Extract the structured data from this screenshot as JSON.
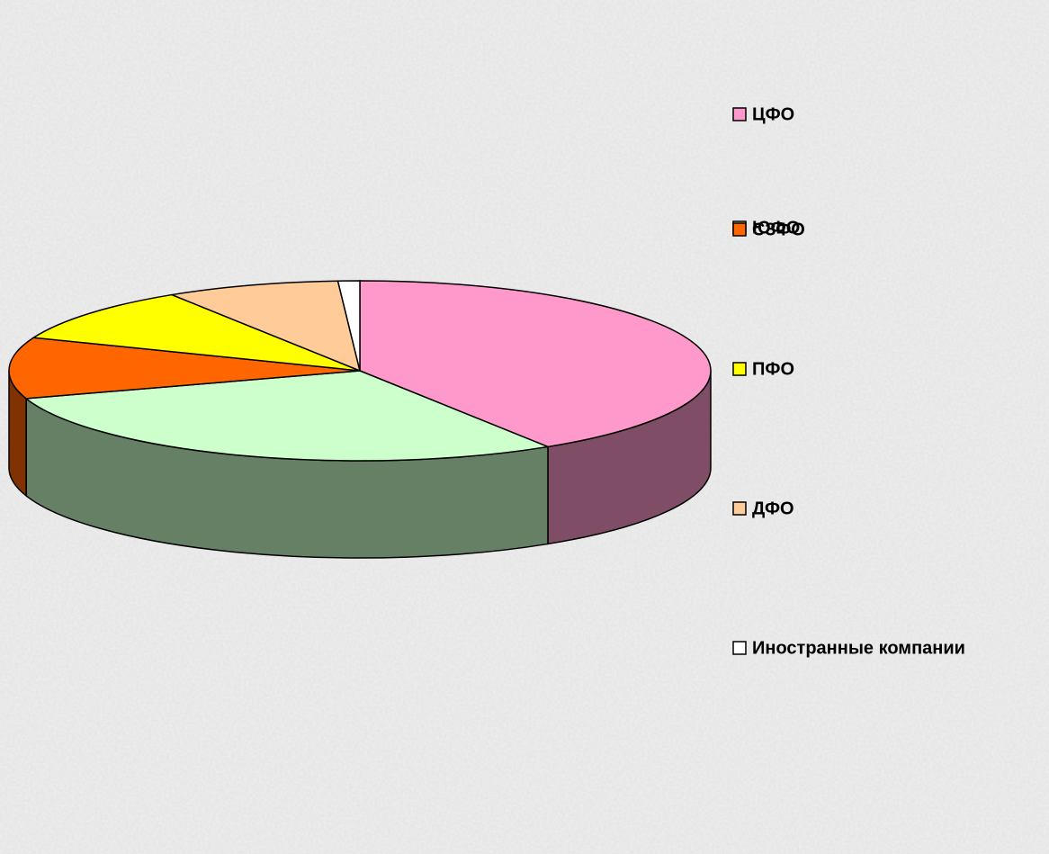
{
  "chart_data": {
    "type": "pie",
    "categories": [
      "ЦФО",
      "ЮФО",
      "СЗФО",
      "ПФО",
      "ДФО",
      "Иностранные компании"
    ],
    "values": [
      41,
      29,
      11,
      10,
      8,
      1
    ],
    "colors": [
      "#ff99cc",
      "#ccffcc",
      "#ff6600",
      "#ffff00",
      "#ffcc99",
      "#ffffff"
    ],
    "three_d": true,
    "legend": "right"
  }
}
